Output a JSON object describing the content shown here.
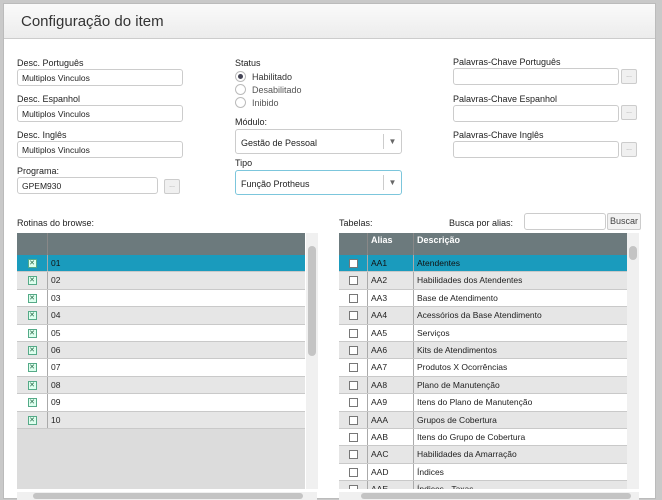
{
  "header": {
    "title": "Configuração do item"
  },
  "form": {
    "desc_pt": {
      "label": "Desc. Português",
      "value": "Multiplos Vinculos"
    },
    "desc_es": {
      "label": "Desc. Espanhol",
      "value": "Multiplos Vinculos"
    },
    "desc_en": {
      "label": "Desc. Inglês",
      "value": "Multiplos Vinculos"
    },
    "programa": {
      "label": "Programa:",
      "value": "GPEM930",
      "button": "..."
    },
    "status": {
      "label": "Status",
      "options": [
        "Habilitado",
        "Desabilitado",
        "Inibido"
      ],
      "selected": "Habilitado"
    },
    "modulo": {
      "label": "Módulo:",
      "value": "Gestão de Pessoal"
    },
    "tipo": {
      "label": "Tipo",
      "value": "Função Protheus"
    },
    "kw_pt": {
      "label": "Palavras-Chave Português",
      "value": "",
      "button": "..."
    },
    "kw_es": {
      "label": "Palavras-Chave Espanhol",
      "value": "",
      "button": "..."
    },
    "kw_en": {
      "label": "Palavras-Chave Inglês",
      "value": "",
      "button": "..."
    }
  },
  "rotinas": {
    "label": "Rotinas do browse:",
    "rows": [
      "01",
      "02",
      "03",
      "04",
      "05",
      "06",
      "07",
      "08",
      "09",
      "10"
    ]
  },
  "tabelas": {
    "label": "Tabelas:",
    "search_label": "Busca por alias:",
    "search_value": "",
    "search_button": "Buscar",
    "columns": [
      "",
      "Alias",
      "Descrição"
    ],
    "rows": [
      [
        "AA1",
        "Atendentes"
      ],
      [
        "AA2",
        "Habilidades dos Atendentes"
      ],
      [
        "AA3",
        "Base de Atendimento"
      ],
      [
        "AA4",
        "Acessórios da Base Atendimento"
      ],
      [
        "AA5",
        "Serviços"
      ],
      [
        "AA6",
        "Kits de Atendimentos"
      ],
      [
        "AA7",
        "Produtos X Ocorrências"
      ],
      [
        "AA8",
        "Plano de Manutenção"
      ],
      [
        "AA9",
        "Itens do Plano de Manutenção"
      ],
      [
        "AAA",
        "Grupos de Cobertura"
      ],
      [
        "AAB",
        "Itens do Grupo de Cobertura"
      ],
      [
        "AAC",
        "Habilidades da Amarração"
      ],
      [
        "AAD",
        "Índices"
      ],
      [
        "AAE",
        "Índices - Taxas"
      ]
    ]
  },
  "colors": {
    "selected_row": "#1a9bbd",
    "grid_header": "#6c7a7d"
  }
}
